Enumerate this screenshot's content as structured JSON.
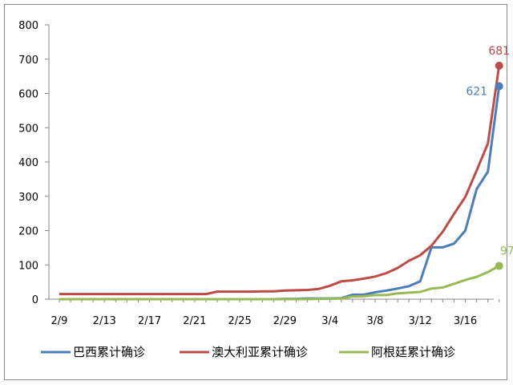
{
  "chart_data": {
    "type": "line",
    "x": [
      "2/9",
      "2/10",
      "2/11",
      "2/12",
      "2/13",
      "2/14",
      "2/15",
      "2/16",
      "2/17",
      "2/18",
      "2/19",
      "2/20",
      "2/21",
      "2/22",
      "2/23",
      "2/24",
      "2/25",
      "2/26",
      "2/27",
      "2/28",
      "2/29",
      "3/1",
      "3/2",
      "3/3",
      "3/4",
      "3/5",
      "3/6",
      "3/7",
      "3/8",
      "3/9",
      "3/10",
      "3/11",
      "3/12",
      "3/13",
      "3/14",
      "3/15",
      "3/16",
      "3/17",
      "3/18",
      "3/19"
    ],
    "x_ticks": [
      "2/9",
      "2/13",
      "2/17",
      "2/21",
      "2/25",
      "2/29",
      "3/4",
      "3/8",
      "3/12",
      "3/16"
    ],
    "y_ticks": [
      0,
      100,
      200,
      300,
      400,
      500,
      600,
      700,
      800
    ],
    "ylim": [
      0,
      800
    ],
    "series": [
      {
        "name": "巴西累计确诊",
        "color": "#4a7ebb",
        "end_label": "621",
        "values": [
          0,
          0,
          0,
          0,
          0,
          0,
          0,
          0,
          0,
          0,
          0,
          0,
          0,
          0,
          0,
          0,
          0,
          0,
          0,
          0,
          1,
          1,
          2,
          2,
          2,
          3,
          13,
          13,
          20,
          25,
          31,
          38,
          52,
          151,
          151,
          162,
          200,
          321,
          372,
          621
        ]
      },
      {
        "name": "澳大利亚累计确诊",
        "color": "#be4b48",
        "end_label": "681",
        "values": [
          15,
          15,
          15,
          15,
          15,
          15,
          15,
          15,
          15,
          15,
          15,
          15,
          15,
          15,
          22,
          22,
          22,
          22,
          23,
          23,
          25,
          26,
          27,
          30,
          39,
          52,
          55,
          60,
          66,
          76,
          91,
          112,
          128,
          156,
          197,
          249,
          298,
          375,
          454,
          681
        ]
      },
      {
        "name": "阿根廷累计确诊",
        "color": "#98b954",
        "end_label": "97",
        "values": [
          0,
          0,
          0,
          0,
          0,
          0,
          0,
          0,
          0,
          0,
          0,
          0,
          0,
          0,
          0,
          0,
          0,
          0,
          0,
          0,
          0,
          0,
          0,
          1,
          1,
          2,
          8,
          9,
          12,
          12,
          17,
          19,
          21,
          31,
          34,
          45,
          56,
          65,
          79,
          97
        ]
      }
    ]
  }
}
